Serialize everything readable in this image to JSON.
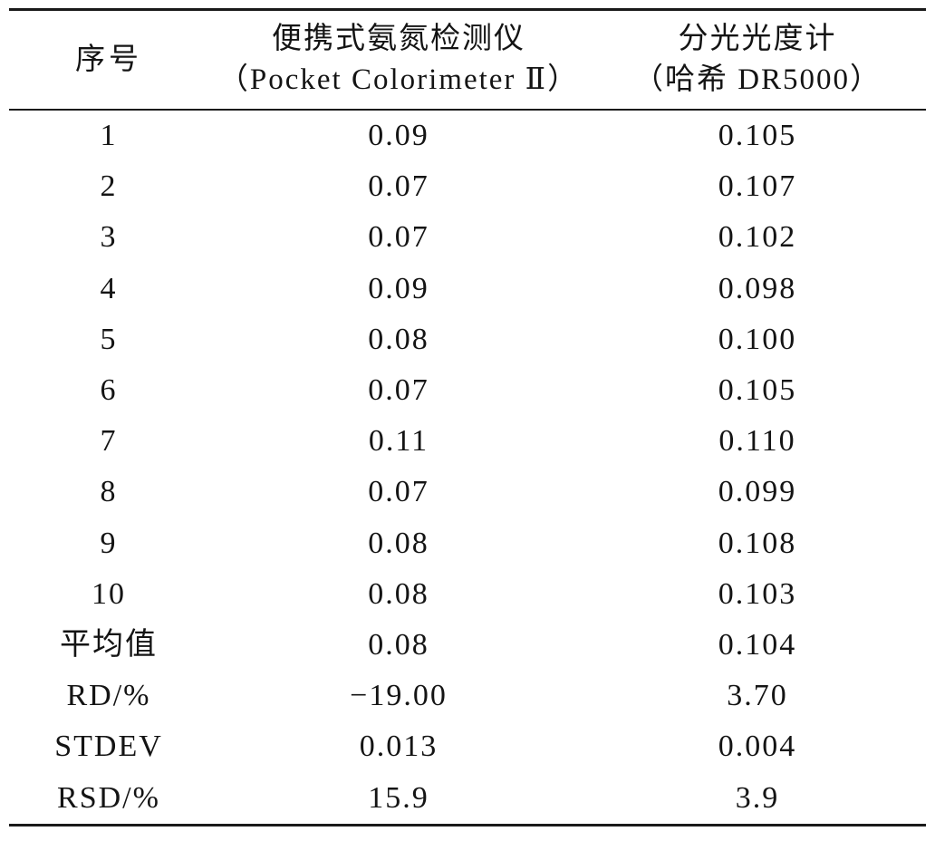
{
  "table": {
    "header": {
      "index": "序号",
      "portable_name": "便携式氨氮检测仪",
      "portable_model": "（Pocket Colorimeter Ⅱ）",
      "spectro_name": "分光光度计",
      "spectro_model": "（哈希 DR5000）"
    },
    "rows": [
      {
        "label": "1",
        "portable": "0.09",
        "spectro": "0.105"
      },
      {
        "label": "2",
        "portable": "0.07",
        "spectro": "0.107"
      },
      {
        "label": "3",
        "portable": "0.07",
        "spectro": "0.102"
      },
      {
        "label": "4",
        "portable": "0.09",
        "spectro": "0.098"
      },
      {
        "label": "5",
        "portable": "0.08",
        "spectro": "0.100"
      },
      {
        "label": "6",
        "portable": "0.07",
        "spectro": "0.105"
      },
      {
        "label": "7",
        "portable": "0.11",
        "spectro": "0.110"
      },
      {
        "label": "8",
        "portable": "0.07",
        "spectro": "0.099"
      },
      {
        "label": "9",
        "portable": "0.08",
        "spectro": "0.108"
      },
      {
        "label": "10",
        "portable": "0.08",
        "spectro": "0.103"
      },
      {
        "label": "平均值",
        "portable": "0.08",
        "spectro": "0.104"
      },
      {
        "label": "RD/%",
        "portable": "−19.00",
        "spectro": "3.70"
      },
      {
        "label": "STDEV",
        "portable": "0.013",
        "spectro": "0.004"
      },
      {
        "label": "RSD/%",
        "portable": "15.9",
        "spectro": "3.9"
      }
    ]
  }
}
